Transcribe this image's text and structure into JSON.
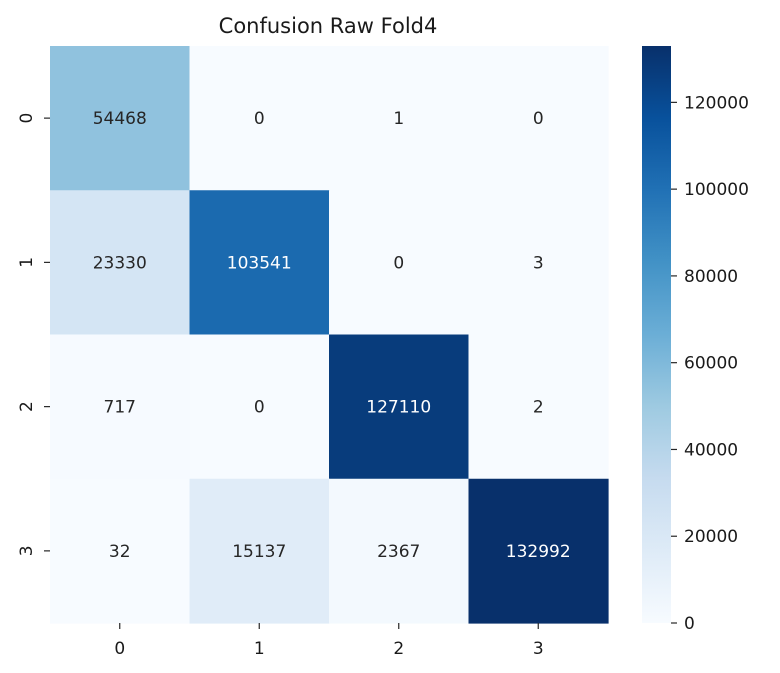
{
  "chart_data": {
    "type": "heatmap",
    "title": "Confusion Raw Fold4",
    "xlabel": "",
    "ylabel": "",
    "x_categories": [
      "0",
      "1",
      "2",
      "3"
    ],
    "y_categories": [
      "0",
      "1",
      "2",
      "3"
    ],
    "values": [
      [
        54468,
        0,
        1,
        0
      ],
      [
        23330,
        103541,
        0,
        3
      ],
      [
        717,
        0,
        127110,
        2
      ],
      [
        32,
        15137,
        2367,
        132992
      ]
    ],
    "colormap": "Blues",
    "colorbar": {
      "min": 0,
      "max": 132992,
      "ticks": [
        0,
        20000,
        40000,
        60000,
        80000,
        100000,
        120000
      ],
      "tick_labels": [
        "0",
        "20000",
        "40000",
        "60000",
        "80000",
        "100000",
        "120000"
      ]
    }
  }
}
